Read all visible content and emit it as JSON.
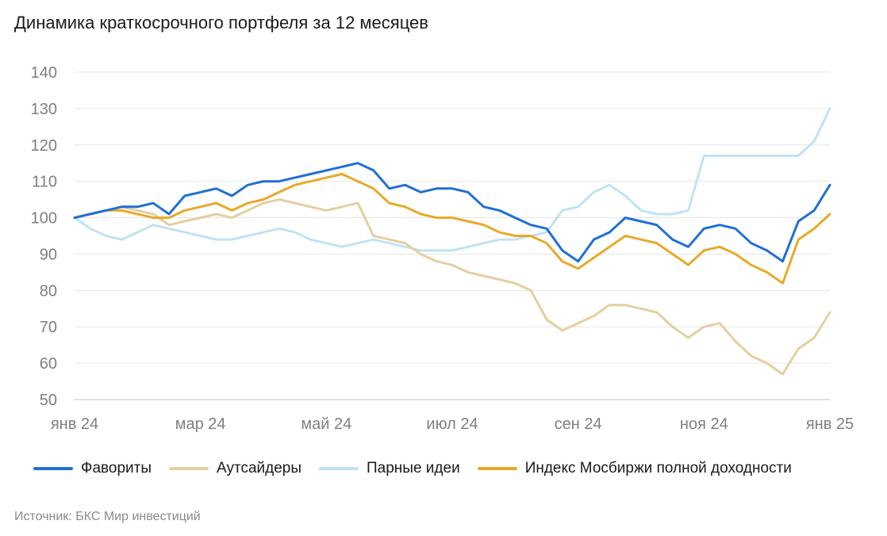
{
  "title": "Динамика краткосрочного портфеля за 12 месяцев",
  "source": "Источник: БКС Мир инвестиций",
  "chart_data": {
    "type": "line",
    "title": "Динамика краткосрочного портфеля за 12 месяцев",
    "xlabel": "",
    "ylabel": "",
    "ylim": [
      50,
      140
    ],
    "yticks": [
      50,
      60,
      70,
      80,
      90,
      100,
      110,
      120,
      130,
      140
    ],
    "xlim": [
      0,
      12
    ],
    "xtick_labels": [
      "янв 24",
      "мар 24",
      "май 24",
      "июл 24",
      "сен 24",
      "ноя 24",
      "янв 25"
    ],
    "xtick_positions": [
      0,
      2,
      4,
      6,
      8,
      10,
      12
    ],
    "grid": "horizontal",
    "legend_position": "bottom",
    "series": [
      {
        "name": "Фавориты",
        "color": "#1f6fd6",
        "x": [
          0,
          0.25,
          0.5,
          0.75,
          1.0,
          1.25,
          1.5,
          1.75,
          2.0,
          2.25,
          2.5,
          2.75,
          3.0,
          3.25,
          3.5,
          3.75,
          4.0,
          4.25,
          4.5,
          4.75,
          5.0,
          5.25,
          5.5,
          5.75,
          6.0,
          6.25,
          6.5,
          6.75,
          7.0,
          7.25,
          7.5,
          7.75,
          8.0,
          8.25,
          8.5,
          8.75,
          9.0,
          9.25,
          9.5,
          9.75,
          10.0,
          10.25,
          10.5,
          10.75,
          11.0,
          11.25,
          11.5,
          11.75,
          12.0
        ],
        "values": [
          100,
          101,
          102,
          103,
          103,
          104,
          101,
          106,
          107,
          108,
          106,
          109,
          110,
          110,
          111,
          112,
          113,
          114,
          115,
          113,
          108,
          109,
          107,
          108,
          108,
          107,
          103,
          102,
          100,
          98,
          97,
          91,
          88,
          94,
          96,
          100,
          99,
          98,
          94,
          92,
          97,
          98,
          97,
          93,
          91,
          88,
          99,
          102,
          109
        ]
      },
      {
        "name": "Аутсайдеры",
        "color": "#e3cf9f",
        "x": [
          0,
          0.25,
          0.5,
          0.75,
          1.0,
          1.25,
          1.5,
          1.75,
          2.0,
          2.25,
          2.5,
          2.75,
          3.0,
          3.25,
          3.5,
          3.75,
          4.0,
          4.25,
          4.5,
          4.75,
          5.0,
          5.25,
          5.5,
          5.75,
          6.0,
          6.25,
          6.5,
          6.75,
          7.0,
          7.25,
          7.5,
          7.75,
          8.0,
          8.25,
          8.5,
          8.75,
          9.0,
          9.25,
          9.5,
          9.75,
          10.0,
          10.25,
          10.5,
          10.75,
          11.0,
          11.25,
          11.5,
          11.75,
          12.0
        ],
        "values": [
          100,
          101,
          102,
          103,
          102,
          101,
          98,
          99,
          100,
          101,
          100,
          102,
          104,
          105,
          104,
          103,
          102,
          103,
          104,
          95,
          94,
          93,
          90,
          88,
          87,
          85,
          84,
          83,
          82,
          80,
          72,
          69,
          71,
          73,
          76,
          76,
          75,
          74,
          70,
          67,
          70,
          71,
          66,
          62,
          60,
          57,
          64,
          67,
          74
        ]
      },
      {
        "name": "Парные идеи",
        "color": "#bfe3f2",
        "x": [
          0,
          0.25,
          0.5,
          0.75,
          1.0,
          1.25,
          1.5,
          1.75,
          2.0,
          2.25,
          2.5,
          2.75,
          3.0,
          3.25,
          3.5,
          3.75,
          4.0,
          4.25,
          4.5,
          4.75,
          5.0,
          5.25,
          5.5,
          5.75,
          6.0,
          6.25,
          6.5,
          6.75,
          7.0,
          7.25,
          7.5,
          7.75,
          8.0,
          8.25,
          8.5,
          8.75,
          9.0,
          9.25,
          9.5,
          9.75,
          10.0,
          10.25,
          10.5,
          10.75,
          11.0,
          11.25,
          11.5,
          11.75,
          12.0
        ],
        "values": [
          100,
          97,
          95,
          94,
          96,
          98,
          97,
          96,
          95,
          94,
          94,
          95,
          96,
          97,
          96,
          94,
          93,
          92,
          93,
          94,
          93,
          92,
          91,
          91,
          91,
          92,
          93,
          94,
          94,
          95,
          96,
          102,
          103,
          107,
          109,
          106,
          102,
          101,
          101,
          102,
          117,
          117,
          117,
          117,
          117,
          117,
          117,
          121,
          130
        ]
      },
      {
        "name": "Индекс Мосбиржи полной доходности",
        "color": "#e8a928",
        "x": [
          0,
          0.25,
          0.5,
          0.75,
          1.0,
          1.25,
          1.5,
          1.75,
          2.0,
          2.25,
          2.5,
          2.75,
          3.0,
          3.25,
          3.5,
          3.75,
          4.0,
          4.25,
          4.5,
          4.75,
          5.0,
          5.25,
          5.5,
          5.75,
          6.0,
          6.25,
          6.5,
          6.75,
          7.0,
          7.25,
          7.5,
          7.75,
          8.0,
          8.25,
          8.5,
          8.75,
          9.0,
          9.25,
          9.5,
          9.75,
          10.0,
          10.25,
          10.5,
          10.75,
          11.0,
          11.25,
          11.5,
          11.75,
          12.0
        ],
        "values": [
          100,
          101,
          102,
          102,
          101,
          100,
          100,
          102,
          103,
          104,
          102,
          104,
          105,
          107,
          109,
          110,
          111,
          112,
          110,
          108,
          104,
          103,
          101,
          100,
          100,
          99,
          98,
          96,
          95,
          95,
          93,
          88,
          86,
          89,
          92,
          95,
          94,
          93,
          90,
          87,
          91,
          92,
          90,
          87,
          85,
          82,
          94,
          97,
          101
        ]
      }
    ]
  }
}
